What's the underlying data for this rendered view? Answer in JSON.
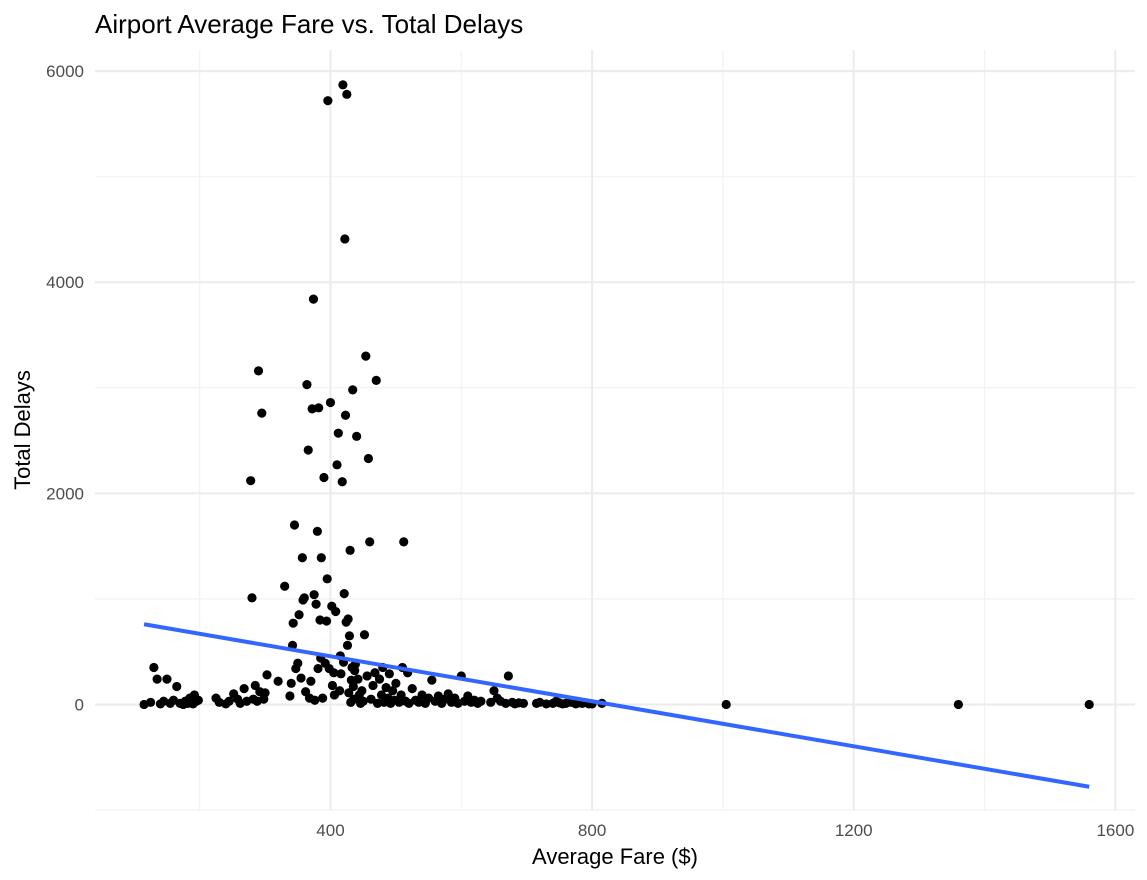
{
  "chart_data": {
    "type": "scatter",
    "title": "Airport Average Fare vs. Total Delays",
    "xlabel": "Average Fare ($)",
    "ylabel": "Total Delays",
    "xlim": [
      40,
      1630
    ],
    "ylim": [
      -1000,
      6200
    ],
    "x_ticks": [
      400,
      800,
      1200,
      1600
    ],
    "y_ticks": [
      0,
      2000,
      4000,
      6000
    ],
    "grid": true,
    "colors": {
      "points": "#000000",
      "trend": "#3366ff"
    },
    "trend_line": {
      "x": [
        115,
        1560
      ],
      "y": [
        760,
        -780
      ]
    },
    "points": [
      [
        115,
        0
      ],
      [
        125,
        20
      ],
      [
        130,
        350
      ],
      [
        135,
        240
      ],
      [
        140,
        5
      ],
      [
        145,
        30
      ],
      [
        150,
        240
      ],
      [
        155,
        10
      ],
      [
        160,
        40
      ],
      [
        165,
        170
      ],
      [
        170,
        10
      ],
      [
        175,
        0
      ],
      [
        178,
        30
      ],
      [
        182,
        10
      ],
      [
        185,
        60
      ],
      [
        188,
        20
      ],
      [
        190,
        5
      ],
      [
        192,
        90
      ],
      [
        195,
        30
      ],
      [
        198,
        40
      ],
      [
        225,
        60
      ],
      [
        230,
        20
      ],
      [
        240,
        5
      ],
      [
        245,
        30
      ],
      [
        252,
        100
      ],
      [
        258,
        50
      ],
      [
        262,
        10
      ],
      [
        268,
        150
      ],
      [
        272,
        30
      ],
      [
        278,
        2120
      ],
      [
        280,
        1010
      ],
      [
        282,
        50
      ],
      [
        285,
        180
      ],
      [
        288,
        30
      ],
      [
        290,
        3160
      ],
      [
        292,
        120
      ],
      [
        295,
        2760
      ],
      [
        298,
        50
      ],
      [
        300,
        110
      ],
      [
        303,
        280
      ],
      [
        320,
        220
      ],
      [
        330,
        1120
      ],
      [
        338,
        80
      ],
      [
        340,
        200
      ],
      [
        342,
        560
      ],
      [
        343,
        770
      ],
      [
        345,
        1700
      ],
      [
        347,
        340
      ],
      [
        350,
        390
      ],
      [
        352,
        850
      ],
      [
        355,
        250
      ],
      [
        357,
        1390
      ],
      [
        358,
        990
      ],
      [
        360,
        1010
      ],
      [
        362,
        120
      ],
      [
        364,
        3030
      ],
      [
        366,
        2410
      ],
      [
        368,
        60
      ],
      [
        370,
        220
      ],
      [
        372,
        2800
      ],
      [
        374,
        3840
      ],
      [
        375,
        1040
      ],
      [
        376,
        40
      ],
      [
        378,
        950
      ],
      [
        380,
        1640
      ],
      [
        381,
        340
      ],
      [
        382,
        2810
      ],
      [
        384,
        800
      ],
      [
        385,
        440
      ],
      [
        386,
        1390
      ],
      [
        388,
        60
      ],
      [
        390,
        2150
      ],
      [
        392,
        390
      ],
      [
        394,
        790
      ],
      [
        395,
        1190
      ],
      [
        396,
        5720
      ],
      [
        398,
        340
      ],
      [
        400,
        2860
      ],
      [
        402,
        930
      ],
      [
        403,
        180
      ],
      [
        405,
        300
      ],
      [
        406,
        90
      ],
      [
        408,
        880
      ],
      [
        410,
        2270
      ],
      [
        412,
        2570
      ],
      [
        414,
        130
      ],
      [
        415,
        460
      ],
      [
        416,
        290
      ],
      [
        418,
        2110
      ],
      [
        419,
        5870
      ],
      [
        420,
        400
      ],
      [
        421,
        1050
      ],
      [
        422,
        4410
      ],
      [
        423,
        2740
      ],
      [
        424,
        780
      ],
      [
        425,
        5780
      ],
      [
        426,
        560
      ],
      [
        427,
        810
      ],
      [
        428,
        110
      ],
      [
        429,
        650
      ],
      [
        430,
        1460
      ],
      [
        431,
        20
      ],
      [
        432,
        230
      ],
      [
        433,
        350
      ],
      [
        434,
        2980
      ],
      [
        435,
        170
      ],
      [
        436,
        50
      ],
      [
        437,
        320
      ],
      [
        438,
        380
      ],
      [
        440,
        2540
      ],
      [
        442,
        240
      ],
      [
        444,
        90
      ],
      [
        446,
        10
      ],
      [
        448,
        130
      ],
      [
        450,
        30
      ],
      [
        452,
        660
      ],
      [
        454,
        3300
      ],
      [
        456,
        270
      ],
      [
        458,
        2330
      ],
      [
        460,
        1540
      ],
      [
        462,
        50
      ],
      [
        465,
        180
      ],
      [
        468,
        300
      ],
      [
        470,
        3070
      ],
      [
        472,
        10
      ],
      [
        475,
        240
      ],
      [
        478,
        90
      ],
      [
        480,
        350
      ],
      [
        482,
        20
      ],
      [
        485,
        160
      ],
      [
        488,
        60
      ],
      [
        490,
        290
      ],
      [
        492,
        10
      ],
      [
        495,
        130
      ],
      [
        498,
        40
      ],
      [
        500,
        200
      ],
      [
        505,
        20
      ],
      [
        508,
        90
      ],
      [
        510,
        350
      ],
      [
        512,
        1540
      ],
      [
        515,
        30
      ],
      [
        518,
        300
      ],
      [
        520,
        10
      ],
      [
        525,
        150
      ],
      [
        530,
        40
      ],
      [
        535,
        20
      ],
      [
        540,
        90
      ],
      [
        545,
        10
      ],
      [
        550,
        60
      ],
      [
        555,
        230
      ],
      [
        560,
        30
      ],
      [
        565,
        80
      ],
      [
        570,
        10
      ],
      [
        575,
        50
      ],
      [
        580,
        100
      ],
      [
        585,
        20
      ],
      [
        590,
        60
      ],
      [
        595,
        10
      ],
      [
        600,
        270
      ],
      [
        605,
        30
      ],
      [
        610,
        80
      ],
      [
        615,
        20
      ],
      [
        620,
        40
      ],
      [
        625,
        10
      ],
      [
        630,
        30
      ],
      [
        645,
        20
      ],
      [
        650,
        130
      ],
      [
        655,
        60
      ],
      [
        660,
        30
      ],
      [
        668,
        10
      ],
      [
        672,
        270
      ],
      [
        678,
        20
      ],
      [
        682,
        5
      ],
      [
        688,
        15
      ],
      [
        695,
        10
      ],
      [
        715,
        10
      ],
      [
        720,
        20
      ],
      [
        730,
        5
      ],
      [
        740,
        10
      ],
      [
        745,
        30
      ],
      [
        750,
        15
      ],
      [
        755,
        5
      ],
      [
        760,
        10
      ],
      [
        768,
        20
      ],
      [
        775,
        5
      ],
      [
        780,
        15
      ],
      [
        785,
        10
      ],
      [
        795,
        5
      ],
      [
        800,
        5
      ],
      [
        815,
        10
      ],
      [
        1005,
        0
      ],
      [
        1360,
        0
      ],
      [
        1560,
        0
      ]
    ]
  }
}
